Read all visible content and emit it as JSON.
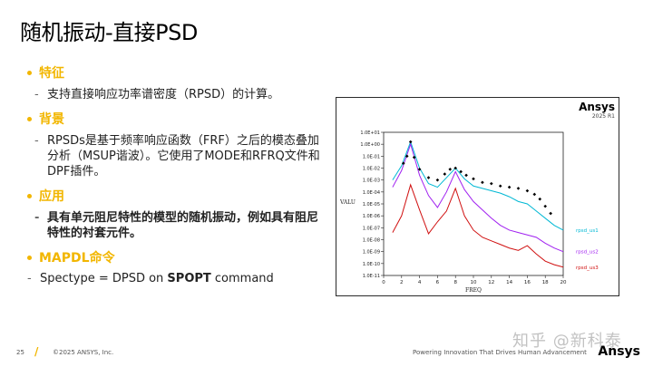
{
  "slide": {
    "title": "随机振动-直接PSD"
  },
  "sections": [
    {
      "title": "特征",
      "items": [
        "支持直接响应功率谱密度（RPSD）的计算。"
      ]
    },
    {
      "title": "背景",
      "items": [
        "RPSDs是基于频率响应函数（FRF）之后的模态叠加分析（MSUP谐波）。它使用了MODE和RFRQ文件和DPF插件。"
      ]
    },
    {
      "title": "应用",
      "items": [
        "具有单元阻尼特性的模型的随机振动，例如具有阻尼特性的衬套元件。"
      ]
    },
    {
      "title": "MAPDL命令"
    }
  ],
  "command": {
    "prefix": "Spectype = DPSD on ",
    "keyword": "SPOPT",
    "suffix": " command"
  },
  "plot": {
    "brand": "Ansys",
    "version": "2025 R1",
    "chart_data": {
      "type": "line",
      "xlabel": "FREQ",
      "ylabel": "VALU",
      "x_ticks": [
        "0",
        "2",
        "4",
        "6",
        "8",
        "10",
        "12",
        "14",
        "16",
        "18",
        "20"
      ],
      "y_ticks": [
        "1.0E+01",
        "1.0E+00",
        "1.0E-01",
        "1.0E-02",
        "1.0E-03",
        "1.0E-04",
        "1.0E-05",
        "1.0E-06",
        "1.0E-07",
        "1.0E-08",
        "1.0E-09",
        "1.0E-10",
        "1.0E-11"
      ],
      "xlim": [
        0,
        20
      ],
      "ylim_log10": [
        -11,
        1
      ],
      "y_scale": "log",
      "series": [
        {
          "name": "rpsd_us1",
          "color": "#00b8d4",
          "x": [
            1,
            2,
            3,
            4,
            5,
            6,
            7,
            8,
            9,
            10,
            11,
            12,
            13,
            14,
            15,
            16,
            17,
            18,
            19,
            20
          ],
          "log10y": [
            -3.0,
            -1.8,
            0.2,
            -2.0,
            -3.3,
            -3.6,
            -2.8,
            -2.0,
            -2.9,
            -3.5,
            -3.7,
            -3.9,
            -4.1,
            -4.4,
            -4.8,
            -5.0,
            -5.6,
            -6.2,
            -6.8,
            -7.2
          ]
        },
        {
          "name": "rpsd_us2",
          "color": "#a020f0",
          "x": [
            1,
            2,
            3,
            4,
            5,
            6,
            7,
            8,
            9,
            10,
            11,
            12,
            13,
            14,
            15,
            16,
            17,
            18,
            19,
            20
          ],
          "log10y": [
            -3.6,
            -2.2,
            0.0,
            -2.6,
            -4.3,
            -5.3,
            -4.0,
            -2.3,
            -3.8,
            -4.8,
            -5.5,
            -6.2,
            -6.8,
            -7.2,
            -7.4,
            -7.6,
            -7.8,
            -8.3,
            -8.7,
            -9.0
          ]
        },
        {
          "name": "rpsd_us3",
          "color": "#d01010",
          "x": [
            1,
            2,
            3,
            4,
            5,
            6,
            7,
            8,
            9,
            10,
            11,
            12,
            13,
            14,
            15,
            16,
            17,
            18,
            19,
            20
          ],
          "log10y": [
            -7.4,
            -6.0,
            -3.4,
            -5.5,
            -7.5,
            -6.5,
            -5.6,
            -3.7,
            -6.0,
            -7.2,
            -7.8,
            -8.1,
            -8.4,
            -8.7,
            -8.9,
            -8.5,
            -9.2,
            -9.8,
            -10.1,
            -10.3
          ]
        },
        {
          "name": "markers",
          "color": "#000000",
          "x": [
            2.2,
            2.6,
            3.0,
            3.4,
            4.0,
            5.0,
            6.0,
            6.8,
            7.4,
            8.0,
            8.6,
            9.2,
            10.0,
            11.0,
            12.0,
            13.0,
            14.0,
            15.0,
            16.0,
            16.8,
            17.4,
            18.0,
            18.6
          ],
          "log10y": [
            -1.6,
            -1.0,
            0.2,
            -1.1,
            -2.1,
            -2.8,
            -3.0,
            -2.5,
            -2.1,
            -2.0,
            -2.3,
            -2.6,
            -2.9,
            -3.2,
            -3.3,
            -3.5,
            -3.6,
            -3.7,
            -3.9,
            -4.2,
            -4.6,
            -5.2,
            -5.8
          ]
        }
      ],
      "legend": [
        "rpsd_us1",
        "rpsd_us2",
        "rpsd_us3"
      ],
      "legend_placement": "right"
    }
  },
  "footer": {
    "page": "25",
    "copyright": "©2025 ANSYS, Inc.",
    "tagline": "Powering Innovation That Drives Human Advancement",
    "brand": "Ansys"
  },
  "watermark": "知乎 @新科泰"
}
